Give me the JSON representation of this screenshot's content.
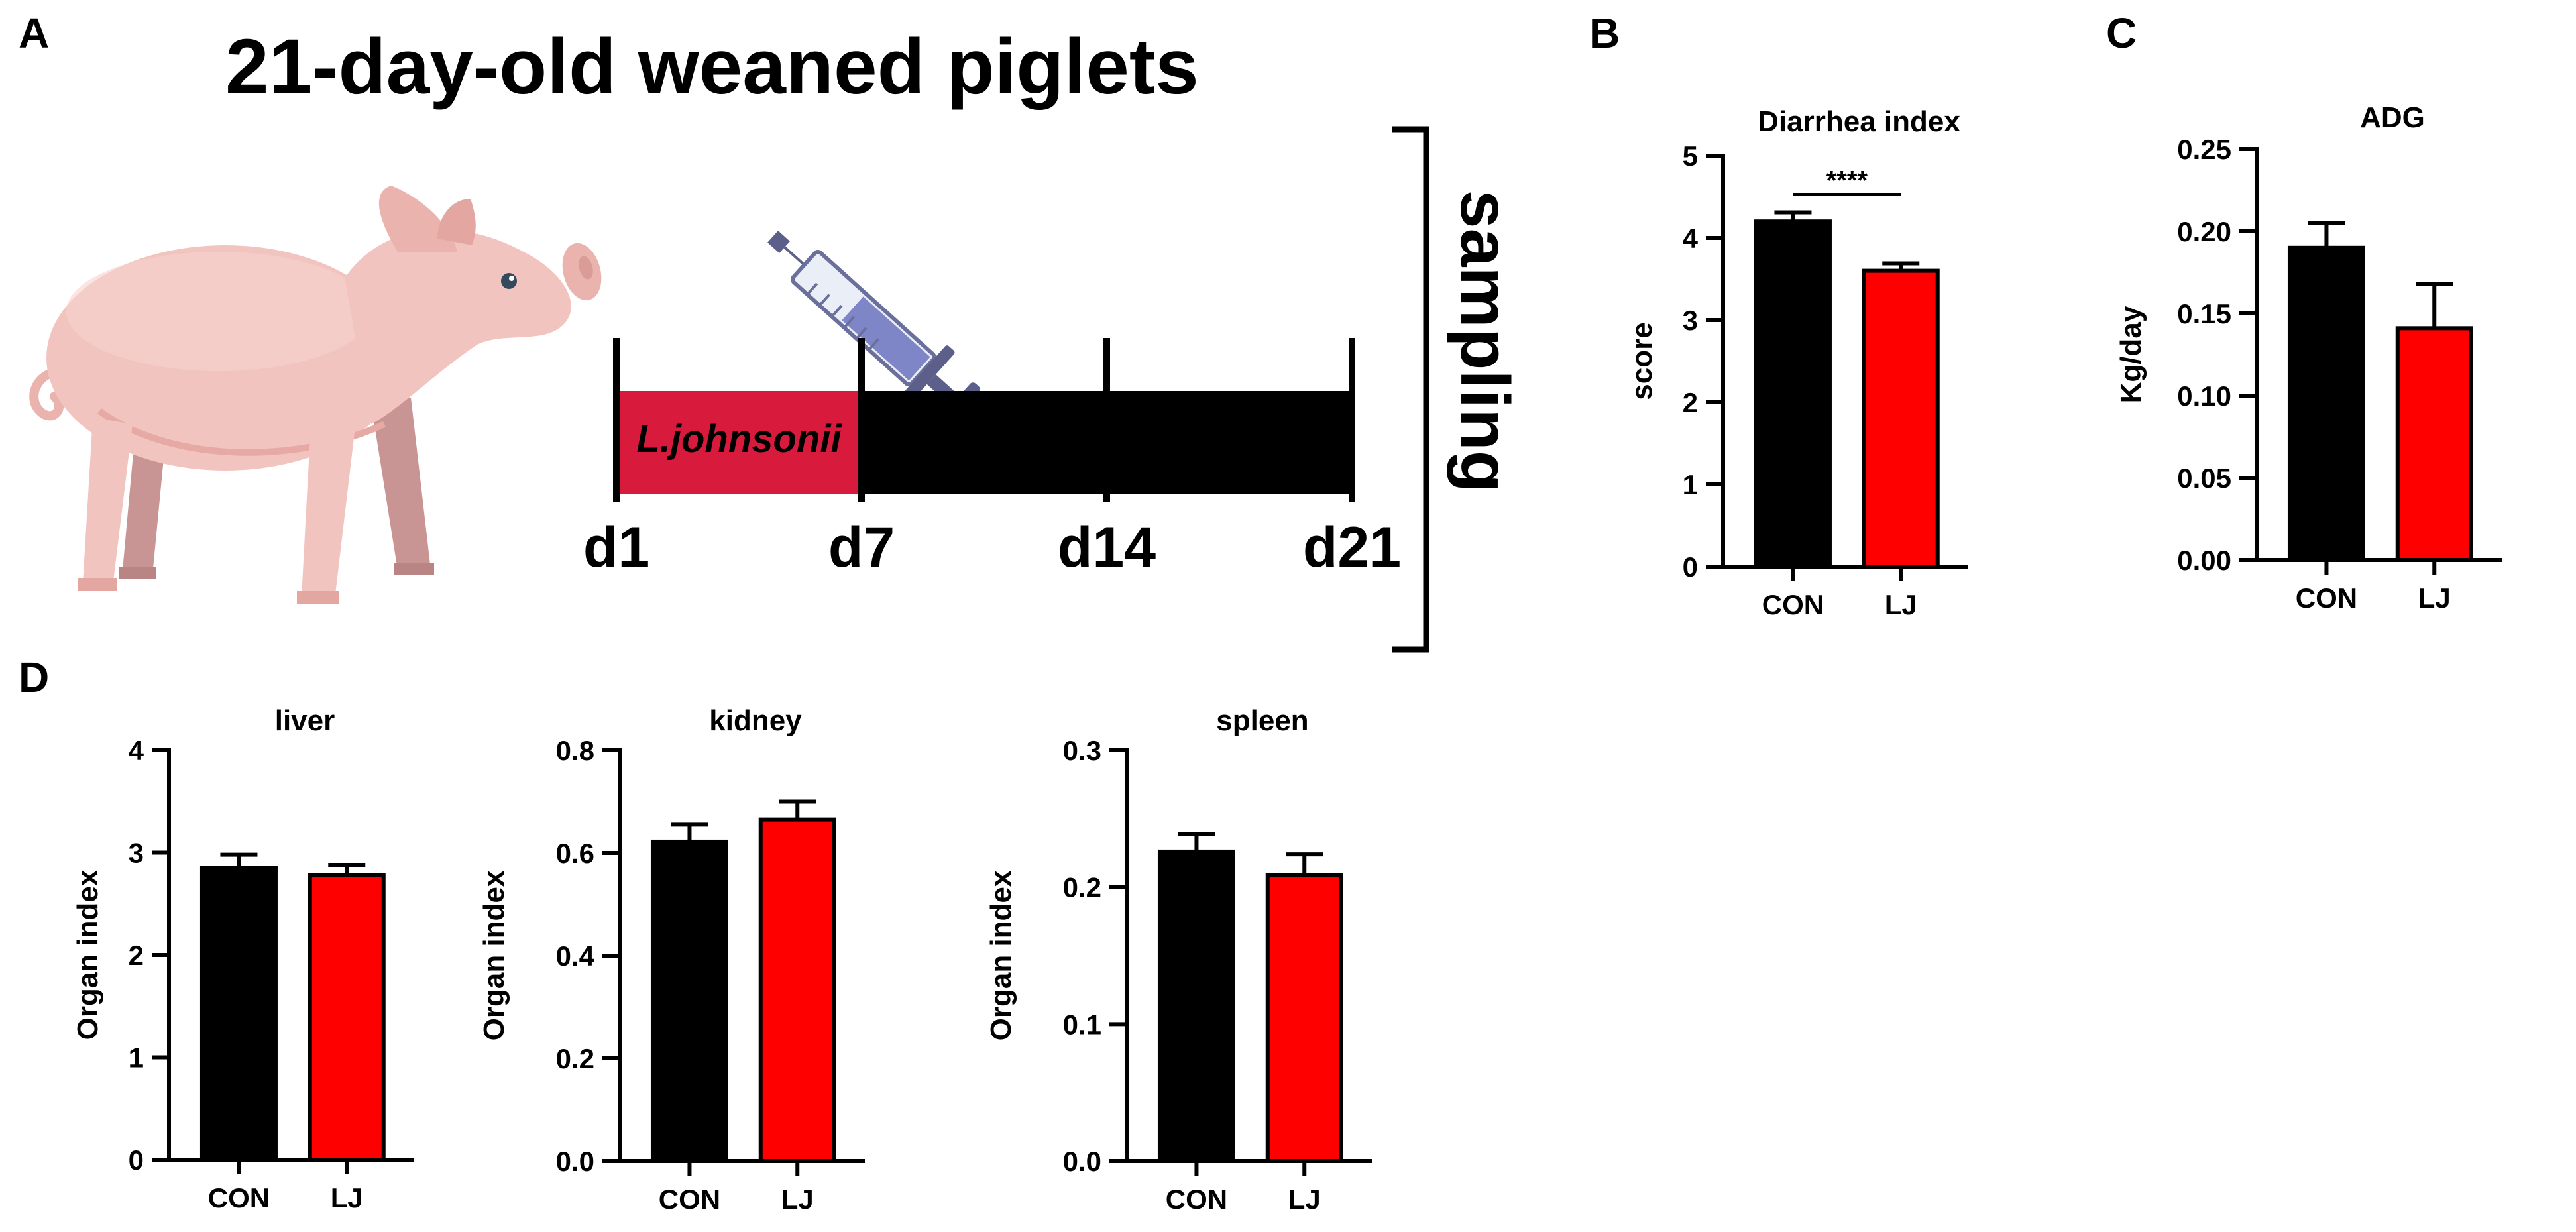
{
  "panel_labels": {
    "a": "A",
    "b": "B",
    "c": "C",
    "d": "D"
  },
  "schematic": {
    "title": "21-day-old weaned piglets",
    "treatment_label": "L.johnsonii",
    "day_labels": [
      "d1",
      "d7",
      "d14",
      "d21"
    ],
    "sampling_label": "sampling",
    "icons": [
      "piglet-illustration",
      "syringe-icon"
    ],
    "colors": {
      "treatment": "#d81b3c",
      "bar": "#000000"
    }
  },
  "chart_data": [
    {
      "id": "diarrhea",
      "type": "bar",
      "title": "Diarrhea index",
      "xlabel": "",
      "ylabel": "score",
      "categories": [
        "CON",
        "LJ"
      ],
      "values": [
        4.2,
        3.6
      ],
      "errors": [
        0.11,
        0.09
      ],
      "colors": [
        "#000000",
        "#ff0000"
      ],
      "ylim": [
        0,
        5
      ],
      "yticks": [
        0,
        1,
        2,
        3,
        4,
        5
      ],
      "ytick_labels": [
        "0",
        "1",
        "2",
        "3",
        "4",
        "5"
      ],
      "significance": "****",
      "grid": false
    },
    {
      "id": "adg",
      "type": "bar",
      "title": "ADG",
      "xlabel": "",
      "ylabel": "Kg/day",
      "categories": [
        "CON",
        "LJ"
      ],
      "values": [
        0.19,
        0.141
      ],
      "errors": [
        0.015,
        0.027
      ],
      "colors": [
        "#000000",
        "#ff0000"
      ],
      "ylim": [
        0,
        0.25
      ],
      "yticks": [
        0,
        0.05,
        0.1,
        0.15,
        0.2,
        0.25
      ],
      "ytick_labels": [
        "0.00",
        "0.05",
        "0.10",
        "0.15",
        "0.20",
        "0.25"
      ],
      "significance": "",
      "grid": false
    },
    {
      "id": "liver",
      "type": "bar",
      "title": "liver",
      "xlabel": "",
      "ylabel": "Organ index",
      "categories": [
        "CON",
        "LJ"
      ],
      "values": [
        2.85,
        2.78
      ],
      "errors": [
        0.13,
        0.1
      ],
      "colors": [
        "#000000",
        "#ff0000"
      ],
      "ylim": [
        0,
        4
      ],
      "yticks": [
        0,
        1,
        2,
        3,
        4
      ],
      "ytick_labels": [
        "0",
        "1",
        "2",
        "3",
        "4"
      ],
      "significance": "",
      "grid": false
    },
    {
      "id": "kidney",
      "type": "bar",
      "title": "kidney",
      "xlabel": "",
      "ylabel": "Organ index",
      "categories": [
        "CON",
        "LJ"
      ],
      "values": [
        0.622,
        0.665
      ],
      "errors": [
        0.033,
        0.035
      ],
      "colors": [
        "#000000",
        "#ff0000"
      ],
      "ylim": [
        0,
        0.8
      ],
      "yticks": [
        0,
        0.2,
        0.4,
        0.6,
        0.8
      ],
      "ytick_labels": [
        "0.0",
        "0.2",
        "0.4",
        "0.6",
        "0.8"
      ],
      "significance": "",
      "grid": false
    },
    {
      "id": "spleen",
      "type": "bar",
      "title": "spleen",
      "xlabel": "",
      "ylabel": "Organ index",
      "categories": [
        "CON",
        "LJ"
      ],
      "values": [
        0.226,
        0.209
      ],
      "errors": [
        0.013,
        0.015
      ],
      "colors": [
        "#000000",
        "#ff0000"
      ],
      "ylim": [
        0,
        0.3
      ],
      "yticks": [
        0,
        0.1,
        0.2,
        0.3
      ],
      "ytick_labels": [
        "0.0",
        "0.1",
        "0.2",
        "0.3"
      ],
      "significance": "",
      "grid": false
    }
  ]
}
